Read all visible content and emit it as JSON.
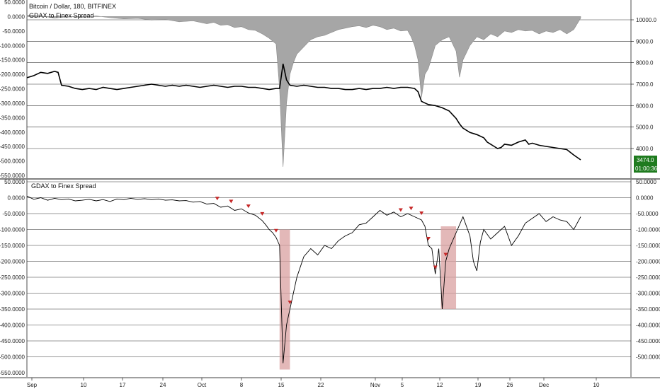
{
  "chart_data": [
    {
      "type": "area",
      "title": "Bitcoin / Dollar, 180, BITFINEX",
      "subtitle": "GDAX to Finex Spread",
      "x_ticks": [
        "Sep",
        "10",
        "17",
        "24",
        "Oct",
        "8",
        "15",
        "22",
        "Nov",
        "5",
        "12",
        "19",
        "26",
        "Dec",
        "10"
      ],
      "left_axis": {
        "ticks": [
          "50.0000",
          "0.0000",
          "-50.0000",
          "-100.0000",
          "-150.0000",
          "-200.0000",
          "-250.0000",
          "-300.0000",
          "-350.0000",
          "-400.0000",
          "-450.0000",
          "-500.0000",
          "-550.0000"
        ],
        "range": [
          -550,
          50
        ]
      },
      "right_axis": {
        "ticks": [
          "10000.0",
          "9000.0",
          "8000.0",
          "7000.0",
          "6000.0",
          "5000.0",
          "4000.0"
        ],
        "range": [
          3000,
          10500
        ]
      },
      "series": [
        {
          "role": "spread",
          "color": "#a6a6a6",
          "points": [
            [
              0,
              5
            ],
            [
              2,
              2
            ],
            [
              4,
              -5
            ],
            [
              6,
              0
            ],
            [
              8,
              -3
            ],
            [
              10,
              2
            ],
            [
              12,
              -4
            ],
            [
              14,
              -8
            ],
            [
              16,
              -6
            ],
            [
              18,
              -12
            ],
            [
              20,
              -10
            ],
            [
              22,
              -18
            ],
            [
              24,
              -15
            ],
            [
              26,
              -25
            ],
            [
              27,
              -20
            ],
            [
              28,
              -30
            ],
            [
              29,
              -28
            ],
            [
              30,
              -38
            ],
            [
              31,
              -35
            ],
            [
              32,
              -45
            ],
            [
              33,
              -48
            ],
            [
              34,
              -60
            ],
            [
              35,
              -75
            ],
            [
              36,
              -95
            ],
            [
              36.5,
              -250
            ],
            [
              37,
              -520
            ],
            [
              37.5,
              -300
            ],
            [
              38,
              -200
            ],
            [
              38.5,
              -160
            ],
            [
              39,
              -130
            ],
            [
              40,
              -105
            ],
            [
              41,
              -80
            ],
            [
              42,
              -70
            ],
            [
              43,
              -65
            ],
            [
              44,
              -55
            ],
            [
              45,
              -45
            ],
            [
              46,
              -40
            ],
            [
              47,
              -35
            ],
            [
              48,
              -32
            ],
            [
              49,
              -38
            ],
            [
              50,
              -30
            ],
            [
              51,
              -35
            ],
            [
              52,
              -45
            ],
            [
              53,
              -40
            ],
            [
              54,
              -50
            ],
            [
              55,
              -48
            ],
            [
              55.5,
              -70
            ],
            [
              56,
              -100
            ],
            [
              56.5,
              -150
            ],
            [
              57,
              -280
            ],
            [
              57.5,
              -200
            ],
            [
              58,
              -180
            ],
            [
              59,
              -100
            ],
            [
              60,
              -80
            ],
            [
              61,
              -70
            ],
            [
              62,
              -120
            ],
            [
              62.5,
              -210
            ],
            [
              63,
              -150
            ],
            [
              64,
              -100
            ],
            [
              65,
              -70
            ],
            [
              66,
              -80
            ],
            [
              67,
              -60
            ],
            [
              68,
              -70
            ],
            [
              69,
              -50
            ],
            [
              70,
              -55
            ],
            [
              71,
              -45
            ],
            [
              72,
              -50
            ],
            [
              73,
              -48
            ],
            [
              74,
              -60
            ],
            [
              75,
              -50
            ],
            [
              76,
              -55
            ],
            [
              77,
              -45
            ],
            [
              78,
              -60
            ],
            [
              79,
              -45
            ],
            [
              80,
              -5
            ]
          ]
        },
        {
          "role": "price",
          "color": "#000000",
          "points": [
            [
              0,
              7300
            ],
            [
              1,
              7400
            ],
            [
              2,
              7550
            ],
            [
              3,
              7500
            ],
            [
              4,
              7600
            ],
            [
              4.5,
              7550
            ],
            [
              5,
              6950
            ],
            [
              6,
              6900
            ],
            [
              7,
              6800
            ],
            [
              8,
              6750
            ],
            [
              9,
              6800
            ],
            [
              10,
              6750
            ],
            [
              11,
              6850
            ],
            [
              12,
              6800
            ],
            [
              13,
              6750
            ],
            [
              14,
              6800
            ],
            [
              15,
              6850
            ],
            [
              16,
              6900
            ],
            [
              17,
              6950
            ],
            [
              18,
              7000
            ],
            [
              19,
              6950
            ],
            [
              20,
              6900
            ],
            [
              21,
              6950
            ],
            [
              22,
              6900
            ],
            [
              23,
              6950
            ],
            [
              24,
              6900
            ],
            [
              25,
              6850
            ],
            [
              26,
              6900
            ],
            [
              27,
              6950
            ],
            [
              28,
              6900
            ],
            [
              29,
              6850
            ],
            [
              30,
              6900
            ],
            [
              31,
              6900
            ],
            [
              32,
              6850
            ],
            [
              33,
              6850
            ],
            [
              34,
              6800
            ],
            [
              35,
              6750
            ],
            [
              36,
              6800
            ],
            [
              36.5,
              6800
            ],
            [
              37,
              7950
            ],
            [
              37.5,
              7200
            ],
            [
              38,
              6950
            ],
            [
              39,
              6900
            ],
            [
              40,
              6950
            ],
            [
              41,
              6900
            ],
            [
              42,
              6850
            ],
            [
              43,
              6850
            ],
            [
              44,
              6800
            ],
            [
              45,
              6800
            ],
            [
              46,
              6750
            ],
            [
              47,
              6750
            ],
            [
              48,
              6800
            ],
            [
              49,
              6750
            ],
            [
              50,
              6800
            ],
            [
              51,
              6800
            ],
            [
              52,
              6850
            ],
            [
              53,
              6800
            ],
            [
              54,
              6850
            ],
            [
              55,
              6850
            ],
            [
              56,
              6800
            ],
            [
              56.5,
              6650
            ],
            [
              57,
              6200
            ],
            [
              58,
              6050
            ],
            [
              59,
              6000
            ],
            [
              60,
              5900
            ],
            [
              61,
              5750
            ],
            [
              62,
              5400
            ],
            [
              62.5,
              5150
            ],
            [
              63,
              4950
            ],
            [
              64,
              4750
            ],
            [
              65,
              4650
            ],
            [
              66,
              4500
            ],
            [
              66.5,
              4300
            ],
            [
              67,
              4200
            ],
            [
              67.5,
              4100
            ],
            [
              68,
              4000
            ],
            [
              68.5,
              4050
            ],
            [
              69,
              4200
            ],
            [
              70,
              4150
            ],
            [
              71,
              4300
            ],
            [
              72,
              4400
            ],
            [
              72.5,
              4200
            ],
            [
              73,
              4250
            ],
            [
              74,
              4150
            ],
            [
              75,
              4100
            ],
            [
              76,
              4050
            ],
            [
              77,
              4000
            ],
            [
              78,
              3950
            ],
            [
              79,
              3700
            ],
            [
              80,
              3474
            ]
          ]
        }
      ],
      "last_price": "3474.0",
      "countdown": "01:00:36",
      "last_price_color": "#1e7b1e"
    },
    {
      "type": "line",
      "title": "GDAX to Finex Spread",
      "x_ticks": [
        "Sep",
        "10",
        "17",
        "24",
        "Oct",
        "8",
        "15",
        "22",
        "Nov",
        "5",
        "12",
        "19",
        "26",
        "Dec",
        "10"
      ],
      "left_axis": {
        "ticks": [
          "50.0000",
          "0.0000",
          "-50.0000",
          "-100.0000",
          "-150.0000",
          "-200.0000",
          "-250.0000",
          "-300.0000",
          "-350.0000",
          "-400.0000",
          "-450.0000",
          "-500.0000",
          "-550.0000"
        ],
        "range": [
          -550,
          50
        ]
      },
      "right_axis": {
        "ticks": [
          "50.0000",
          "0.0000",
          "-50.0000",
          "-100.0000",
          "-150.0000",
          "-200.0000",
          "-250.0000",
          "-300.0000",
          "-350.0000",
          "-400.0000",
          "-450.0000",
          "-500.0000"
        ],
        "range": [
          -550,
          50
        ]
      },
      "series": [
        {
          "color": "#000000",
          "points": [
            [
              0,
              5
            ],
            [
              1,
              -5
            ],
            [
              2,
              0
            ],
            [
              3,
              -8
            ],
            [
              4,
              -2
            ],
            [
              5,
              -6
            ],
            [
              6,
              -4
            ],
            [
              7,
              -10
            ],
            [
              8,
              -8
            ],
            [
              9,
              -5
            ],
            [
              10,
              -10
            ],
            [
              11,
              -6
            ],
            [
              12,
              -12
            ],
            [
              13,
              -4
            ],
            [
              14,
              -6
            ],
            [
              15,
              -2
            ],
            [
              16,
              -5
            ],
            [
              17,
              -3
            ],
            [
              18,
              -6
            ],
            [
              19,
              -4
            ],
            [
              20,
              -8
            ],
            [
              21,
              -7
            ],
            [
              22,
              -10
            ],
            [
              23,
              -9
            ],
            [
              24,
              -14
            ],
            [
              25,
              -12
            ],
            [
              26,
              -20
            ],
            [
              27,
              -18
            ],
            [
              28,
              -30
            ],
            [
              29,
              -26
            ],
            [
              30,
              -40
            ],
            [
              31,
              -35
            ],
            [
              32,
              -48
            ],
            [
              33,
              -55
            ],
            [
              34,
              -72
            ],
            [
              34.5,
              -85
            ],
            [
              35,
              -100
            ],
            [
              35.5,
              -110
            ],
            [
              36,
              -125
            ],
            [
              36.5,
              -150
            ],
            [
              37,
              -520
            ],
            [
              37.5,
              -400
            ],
            [
              38,
              -350
            ],
            [
              38.5,
              -300
            ],
            [
              39,
              -250
            ],
            [
              40,
              -185
            ],
            [
              41,
              -160
            ],
            [
              42,
              -180
            ],
            [
              43,
              -150
            ],
            [
              44,
              -160
            ],
            [
              45,
              -135
            ],
            [
              46,
              -120
            ],
            [
              47,
              -110
            ],
            [
              48,
              -85
            ],
            [
              49,
              -80
            ],
            [
              50,
              -60
            ],
            [
              51,
              -40
            ],
            [
              52,
              -55
            ],
            [
              53,
              -45
            ],
            [
              54,
              -60
            ],
            [
              55,
              -50
            ],
            [
              56,
              -60
            ],
            [
              57,
              -70
            ],
            [
              57.5,
              -90
            ],
            [
              58,
              -150
            ],
            [
              58.5,
              -160
            ],
            [
              59,
              -240
            ],
            [
              59.5,
              -160
            ],
            [
              60,
              -350
            ],
            [
              60.5,
              -200
            ],
            [
              61,
              -160
            ],
            [
              62,
              -110
            ],
            [
              63,
              -60
            ],
            [
              64,
              -120
            ],
            [
              64.5,
              -200
            ],
            [
              65,
              -230
            ],
            [
              65.5,
              -140
            ],
            [
              66,
              -100
            ],
            [
              67,
              -130
            ],
            [
              68,
              -110
            ],
            [
              69,
              -90
            ],
            [
              70,
              -150
            ],
            [
              71,
              -120
            ],
            [
              72,
              -80
            ],
            [
              73,
              -65
            ],
            [
              74,
              -50
            ],
            [
              75,
              -75
            ],
            [
              76,
              -60
            ],
            [
              77,
              -70
            ],
            [
              78,
              -75
            ],
            [
              79,
              -100
            ],
            [
              80,
              -60
            ]
          ]
        }
      ],
      "signals": [
        27.5,
        29.5,
        32,
        34,
        36,
        38,
        54,
        55.5,
        57,
        58,
        59,
        60.5
      ],
      "highlight_zones": [
        {
          "x_start": 36.5,
          "x_end": 38,
          "y_start": -100,
          "y_end": -540
        },
        {
          "x_start": 59.8,
          "x_end": 62,
          "y_start": -90,
          "y_end": -350
        }
      ],
      "signal_color": "#c62828",
      "zone_color": "#d9a0a0"
    }
  ]
}
